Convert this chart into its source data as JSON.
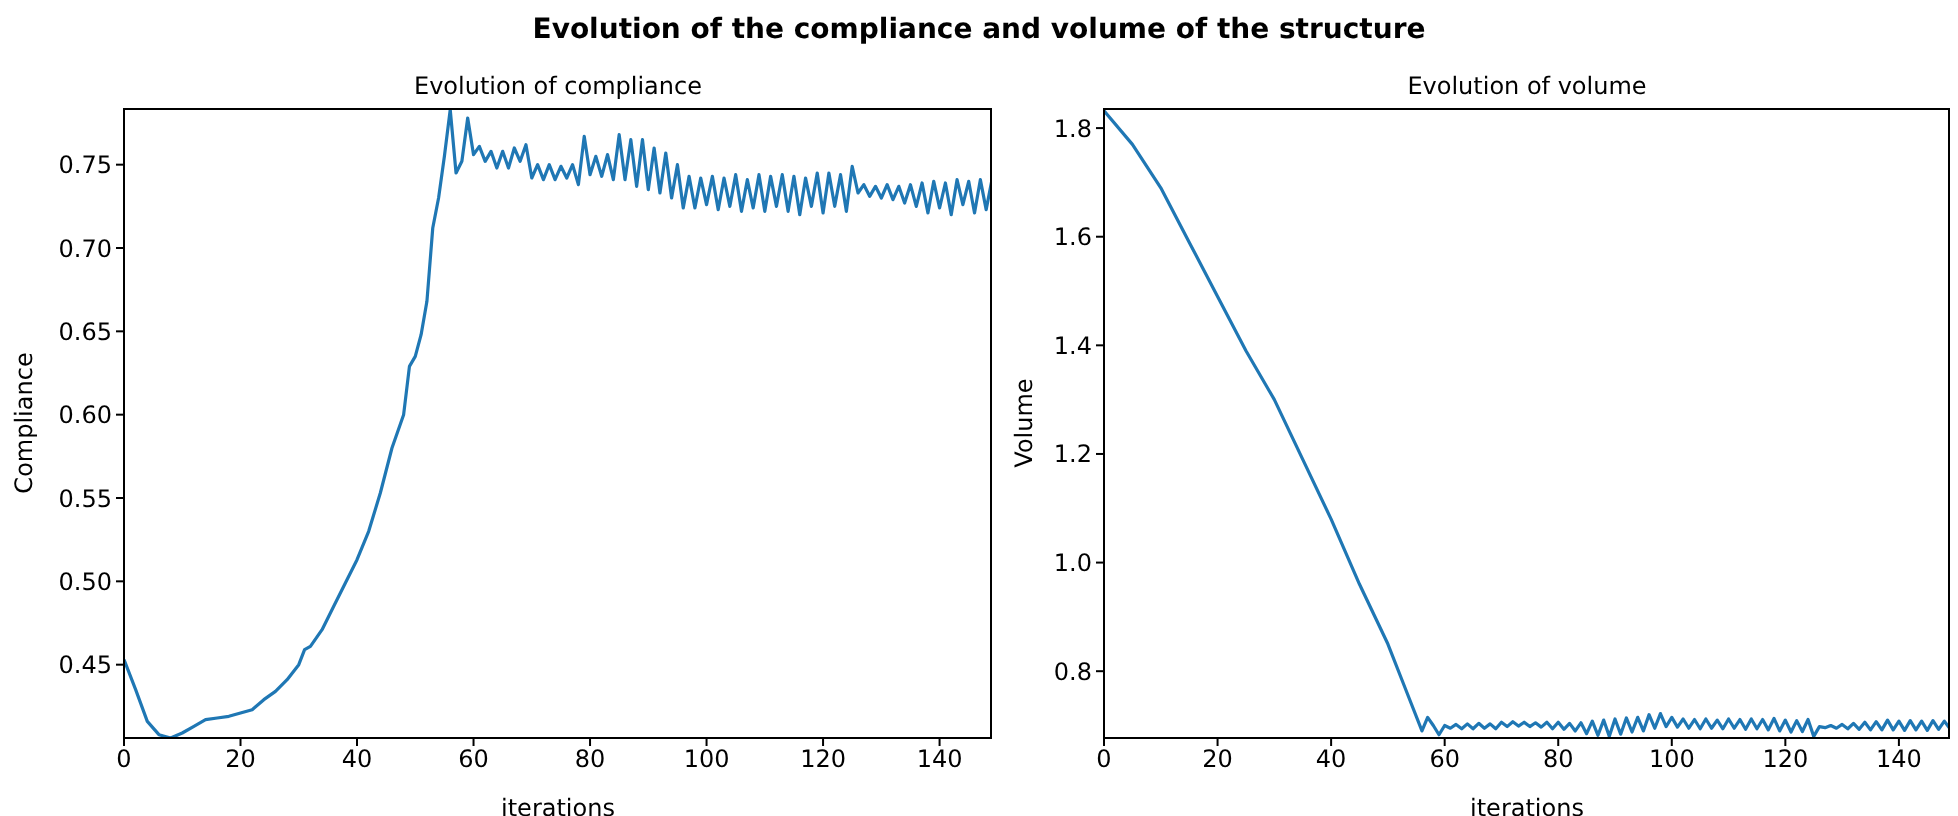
{
  "chart_data": [
    {
      "type": "line",
      "title": "Evolution of compliance",
      "xlabel": "iterations",
      "ylabel": "Compliance",
      "annotations": [
        "Evolution of the compliance and volume of the structure"
      ],
      "xlim": [
        0,
        149
      ],
      "xticks": [
        0,
        20,
        40,
        60,
        80,
        100,
        120,
        140
      ],
      "ylim": [
        0.406,
        0.784
      ],
      "yticks": [
        {
          "value": 0.45,
          "label": "0.45"
        },
        {
          "value": 0.5,
          "label": "0.50"
        },
        {
          "value": 0.55,
          "label": "0.55"
        },
        {
          "value": 0.6,
          "label": "0.60"
        },
        {
          "value": 0.65,
          "label": "0.65"
        },
        {
          "value": 0.7,
          "label": "0.70"
        },
        {
          "value": 0.75,
          "label": "0.75"
        }
      ],
      "series": [
        {
          "color": "#1f77b4",
          "x": [
            0,
            2,
            4,
            6,
            8,
            10,
            12,
            14,
            16,
            18,
            20,
            22,
            24,
            26,
            28,
            30,
            31,
            32,
            34,
            36,
            38,
            40,
            42,
            44,
            46,
            48,
            49,
            50,
            51,
            52,
            53,
            54,
            55,
            56,
            57,
            58,
            59,
            60,
            61,
            62,
            63,
            64,
            65,
            66,
            67,
            68,
            69,
            70,
            71,
            72,
            73,
            74,
            75,
            76,
            77,
            78,
            79,
            80,
            81,
            82,
            83,
            84,
            85,
            86,
            87,
            88,
            89,
            90,
            91,
            92,
            93,
            94,
            95,
            96,
            97,
            98,
            99,
            100,
            101,
            102,
            103,
            104,
            105,
            106,
            107,
            108,
            109,
            110,
            111,
            112,
            113,
            114,
            115,
            116,
            117,
            118,
            119,
            120,
            121,
            122,
            123,
            124,
            125,
            126,
            127,
            128,
            129,
            130,
            131,
            132,
            133,
            134,
            135,
            136,
            137,
            138,
            139,
            140,
            141,
            142,
            143,
            144,
            145,
            146,
            147,
            148,
            149
          ],
          "values": [
            0.453,
            0.435,
            0.416,
            0.408,
            0.406,
            0.409,
            0.413,
            0.417,
            0.418,
            0.419,
            0.421,
            0.423,
            0.429,
            0.434,
            0.441,
            0.45,
            0.459,
            0.461,
            0.471,
            0.485,
            0.499,
            0.513,
            0.53,
            0.553,
            0.58,
            0.6,
            0.629,
            0.635,
            0.648,
            0.668,
            0.712,
            0.73,
            0.755,
            0.783,
            0.745,
            0.752,
            0.778,
            0.756,
            0.761,
            0.752,
            0.758,
            0.748,
            0.758,
            0.748,
            0.76,
            0.752,
            0.762,
            0.742,
            0.75,
            0.741,
            0.75,
            0.741,
            0.749,
            0.742,
            0.75,
            0.738,
            0.767,
            0.744,
            0.755,
            0.743,
            0.756,
            0.741,
            0.768,
            0.741,
            0.765,
            0.737,
            0.765,
            0.735,
            0.76,
            0.733,
            0.757,
            0.73,
            0.75,
            0.724,
            0.743,
            0.724,
            0.742,
            0.726,
            0.743,
            0.723,
            0.742,
            0.725,
            0.744,
            0.722,
            0.741,
            0.724,
            0.744,
            0.722,
            0.743,
            0.725,
            0.744,
            0.722,
            0.743,
            0.72,
            0.742,
            0.725,
            0.745,
            0.721,
            0.745,
            0.725,
            0.744,
            0.722,
            0.749,
            0.733,
            0.738,
            0.731,
            0.737,
            0.73,
            0.738,
            0.729,
            0.737,
            0.727,
            0.738,
            0.725,
            0.739,
            0.721,
            0.74,
            0.724,
            0.739,
            0.72,
            0.741,
            0.726,
            0.74,
            0.721,
            0.741,
            0.723,
            0.741
          ]
        }
      ]
    },
    {
      "type": "line",
      "title": "Evolution of volume",
      "xlabel": "iterations",
      "ylabel": "Volume",
      "xlim": [
        0,
        149
      ],
      "xticks": [
        0,
        20,
        40,
        60,
        80,
        100,
        120,
        140
      ],
      "ylim": [
        0.677,
        1.837
      ],
      "yticks": [
        {
          "value": 0.8,
          "label": "0.8"
        },
        {
          "value": 1.0,
          "label": "1.0"
        },
        {
          "value": 1.2,
          "label": "1.2"
        },
        {
          "value": 1.4,
          "label": "1.4"
        },
        {
          "value": 1.6,
          "label": "1.6"
        },
        {
          "value": 1.8,
          "label": "1.8"
        }
      ],
      "series": [
        {
          "color": "#1f77b4",
          "x": [
            0,
            5,
            10,
            15,
            20,
            25,
            30,
            35,
            40,
            45,
            50,
            53,
            56,
            57,
            58,
            59,
            60,
            61,
            62,
            63,
            64,
            65,
            66,
            67,
            68,
            69,
            70,
            71,
            72,
            73,
            74,
            75,
            76,
            77,
            78,
            79,
            80,
            81,
            82,
            83,
            84,
            85,
            86,
            87,
            88,
            89,
            90,
            91,
            92,
            93,
            94,
            95,
            96,
            97,
            98,
            99,
            100,
            101,
            102,
            103,
            104,
            105,
            106,
            107,
            108,
            109,
            110,
            111,
            112,
            113,
            114,
            115,
            116,
            117,
            118,
            119,
            120,
            121,
            122,
            123,
            124,
            125,
            126,
            127,
            128,
            129,
            130,
            131,
            132,
            133,
            134,
            135,
            136,
            137,
            138,
            139,
            140,
            141,
            142,
            143,
            144,
            145,
            146,
            147,
            148,
            149
          ],
          "values": [
            1.832,
            1.77,
            1.69,
            1.59,
            1.49,
            1.39,
            1.3,
            1.19,
            1.08,
            0.96,
            0.85,
            0.77,
            0.69,
            0.715,
            0.7,
            0.683,
            0.7,
            0.695,
            0.702,
            0.694,
            0.703,
            0.694,
            0.704,
            0.695,
            0.703,
            0.694,
            0.706,
            0.698,
            0.707,
            0.699,
            0.706,
            0.698,
            0.705,
            0.697,
            0.706,
            0.694,
            0.706,
            0.693,
            0.704,
            0.69,
            0.705,
            0.685,
            0.708,
            0.682,
            0.71,
            0.68,
            0.712,
            0.684,
            0.714,
            0.688,
            0.715,
            0.69,
            0.72,
            0.695,
            0.722,
            0.698,
            0.715,
            0.697,
            0.712,
            0.695,
            0.711,
            0.694,
            0.712,
            0.695,
            0.71,
            0.694,
            0.712,
            0.695,
            0.711,
            0.693,
            0.712,
            0.694,
            0.711,
            0.692,
            0.713,
            0.69,
            0.71,
            0.688,
            0.709,
            0.689,
            0.711,
            0.68,
            0.698,
            0.696,
            0.7,
            0.695,
            0.702,
            0.694,
            0.704,
            0.693,
            0.706,
            0.692,
            0.707,
            0.692,
            0.71,
            0.692,
            0.708,
            0.691,
            0.709,
            0.692,
            0.708,
            0.691,
            0.709,
            0.693,
            0.708,
            0.694
          ]
        }
      ]
    }
  ]
}
